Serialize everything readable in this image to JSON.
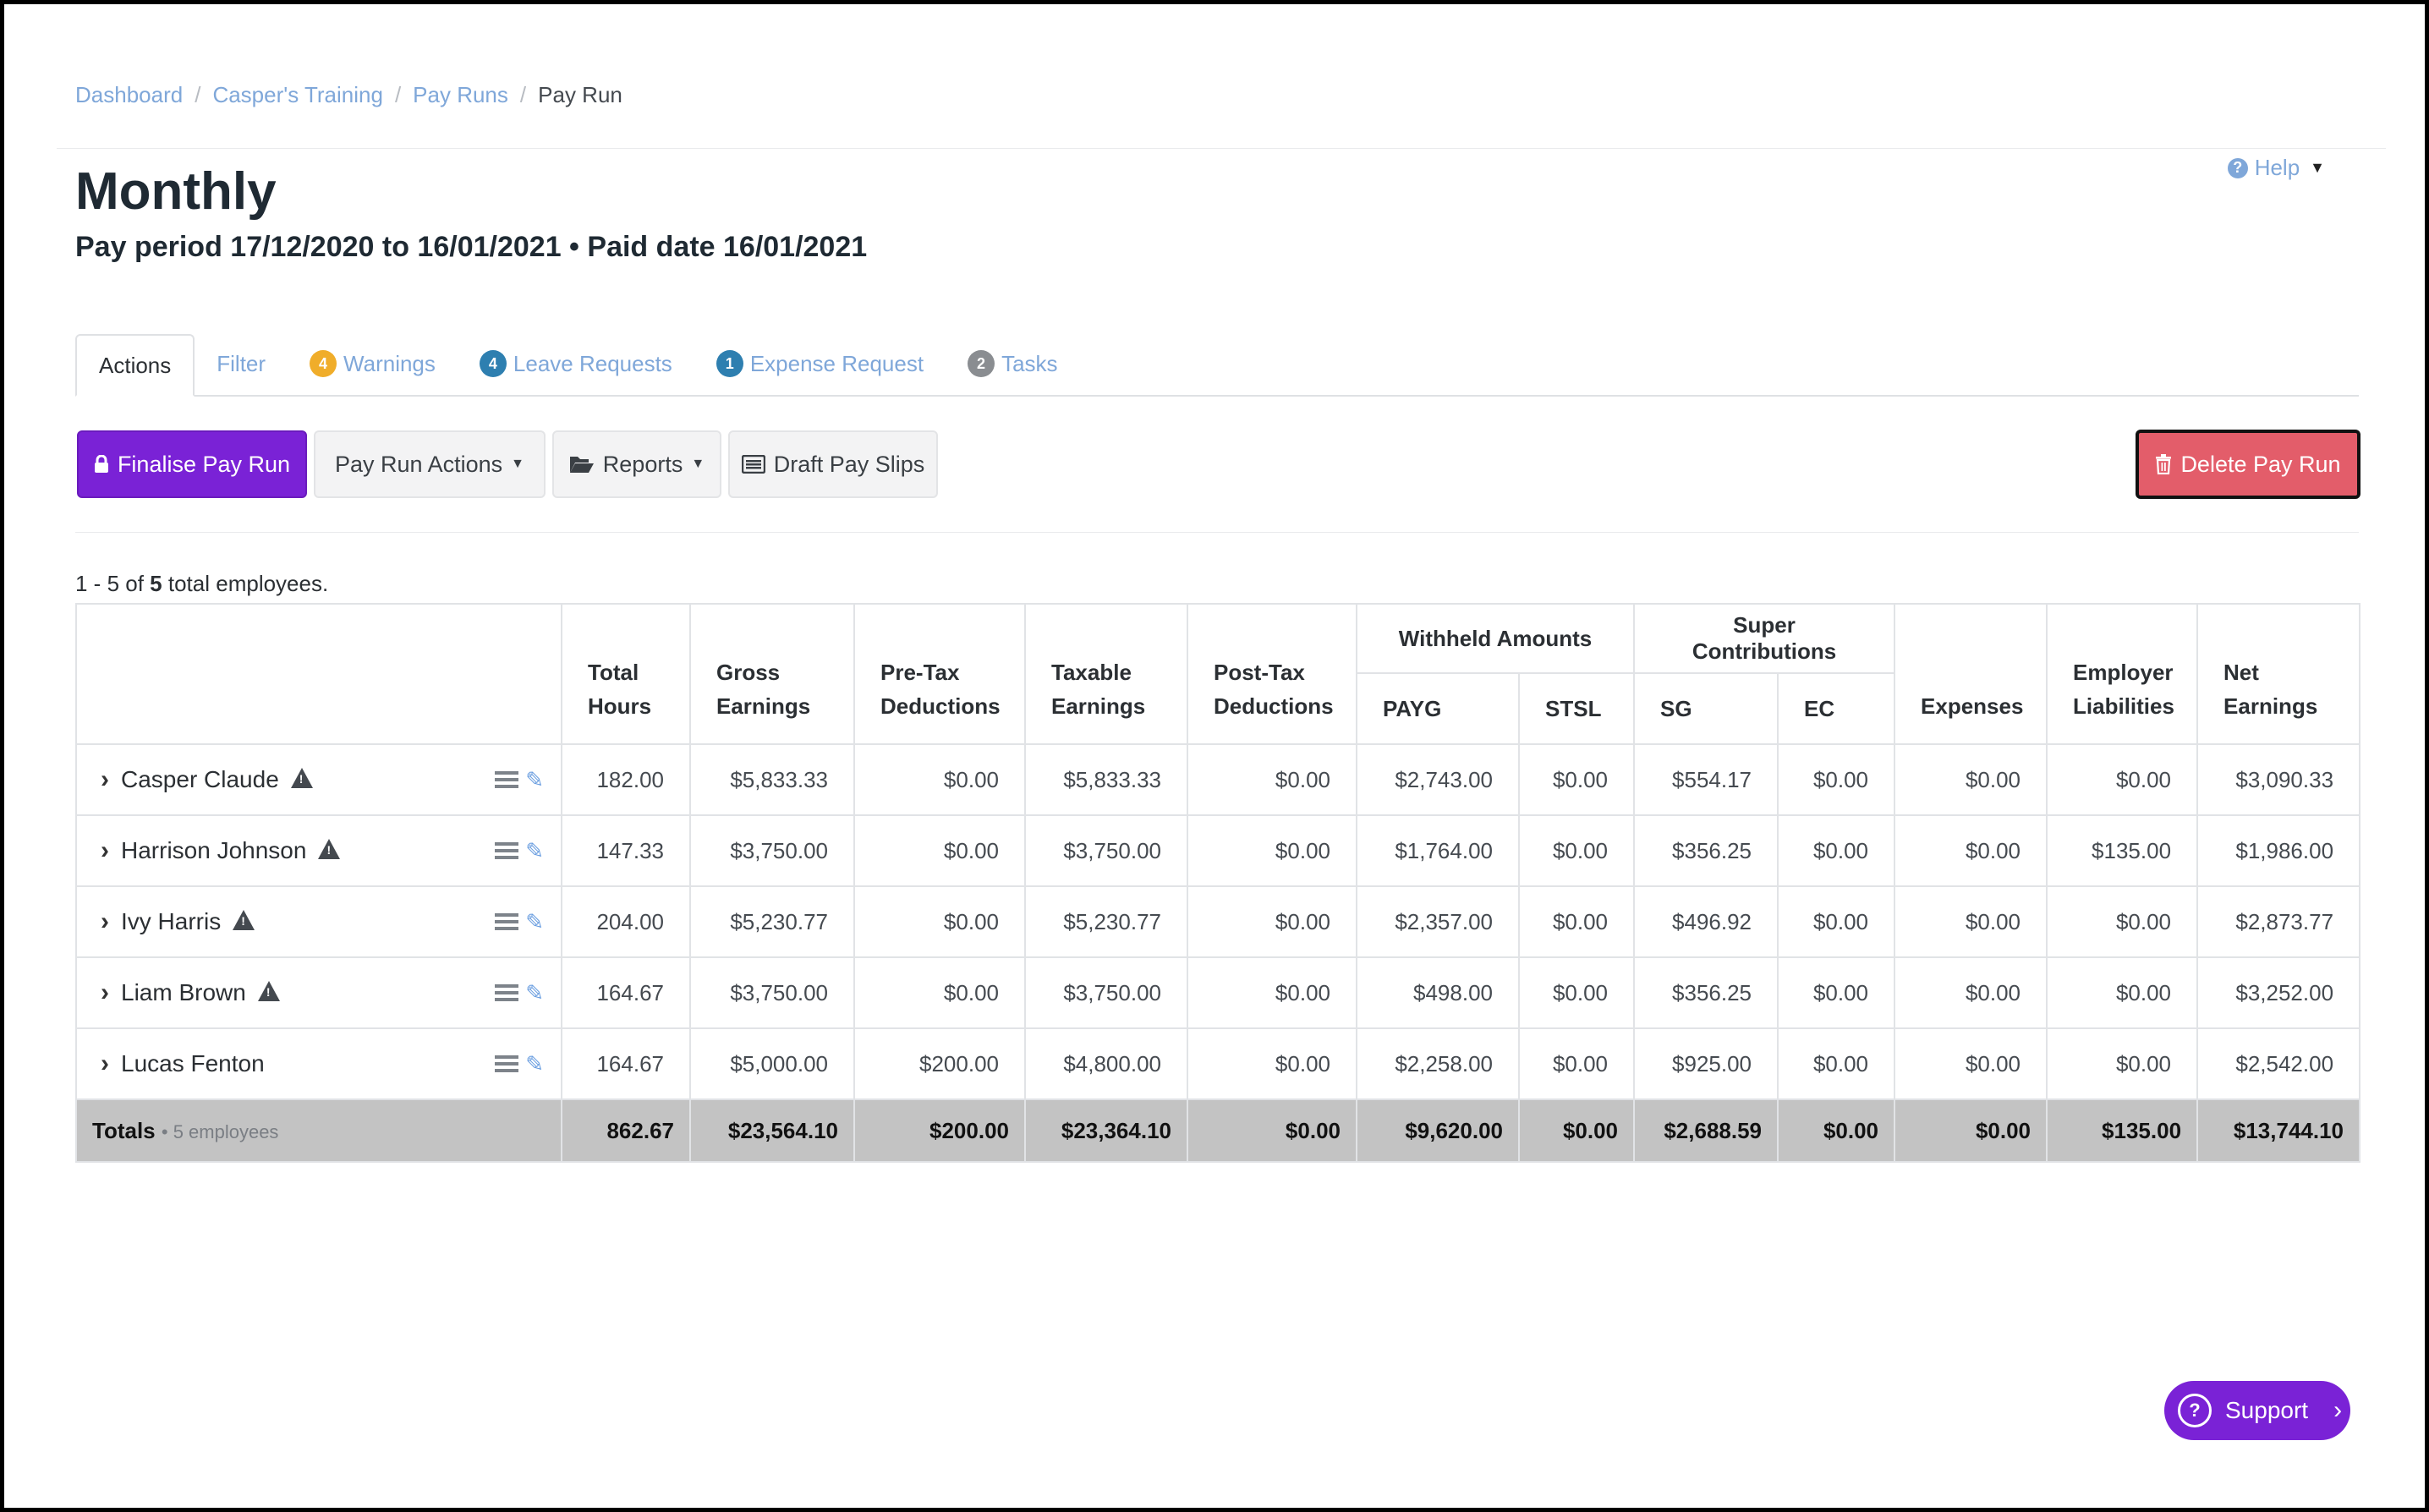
{
  "breadcrumb": {
    "items": [
      "Dashboard",
      "Casper's Training",
      "Pay Runs"
    ],
    "separator": "/",
    "current": "Pay Run"
  },
  "help": {
    "label": "Help"
  },
  "header": {
    "title": "Monthly",
    "subtitle": "Pay period 17/12/2020 to 16/01/2021 • Paid date 16/01/2021"
  },
  "tabs": [
    {
      "label": "Actions",
      "badge": null
    },
    {
      "label": "Filter",
      "badge": null
    },
    {
      "label": "Warnings",
      "badge": "4",
      "badge_color": "#f0ad2a"
    },
    {
      "label": "Leave Requests",
      "badge": "4",
      "badge_color": "#2e7fb0"
    },
    {
      "label": "Expense Request",
      "badge": "1",
      "badge_color": "#2e7fb0"
    },
    {
      "label": "Tasks",
      "badge": "2",
      "badge_color": "#8a8d91"
    }
  ],
  "actions": {
    "finalise": "Finalise Pay Run",
    "pay_run_actions": "Pay Run Actions",
    "reports": "Reports",
    "draft_pay_slips": "Draft Pay Slips",
    "delete": "Delete Pay Run"
  },
  "summary": {
    "prefix": "1 - 5 of",
    "total": "5",
    "suffix": "total employees."
  },
  "table": {
    "group_headers": {
      "withheld": "Withheld Amounts",
      "super": "Super Contributions"
    },
    "headers": {
      "total_hours": [
        "Total",
        "Hours"
      ],
      "gross": [
        "Gross",
        "Earnings"
      ],
      "pretax": [
        "Pre-Tax",
        "Deductions"
      ],
      "taxable": [
        "Taxable",
        "Earnings"
      ],
      "posttax": [
        "Post-Tax",
        "Deductions"
      ],
      "payg": "PAYG",
      "stsl": "STSL",
      "sg": "SG",
      "ec": "EC",
      "expenses": "Expenses",
      "employer": [
        "Employer",
        "Liabilities"
      ],
      "net": [
        "Net",
        "Earnings"
      ]
    },
    "rows": [
      {
        "name": "Casper Claude",
        "warning": true,
        "values": [
          "182.00",
          "$5,833.33",
          "$0.00",
          "$5,833.33",
          "$0.00",
          "$2,743.00",
          "$0.00",
          "$554.17",
          "$0.00",
          "$0.00",
          "$0.00",
          "$3,090.33"
        ]
      },
      {
        "name": "Harrison Johnson",
        "warning": true,
        "values": [
          "147.33",
          "$3,750.00",
          "$0.00",
          "$3,750.00",
          "$0.00",
          "$1,764.00",
          "$0.00",
          "$356.25",
          "$0.00",
          "$0.00",
          "$135.00",
          "$1,986.00"
        ]
      },
      {
        "name": "Ivy Harris",
        "warning": true,
        "values": [
          "204.00",
          "$5,230.77",
          "$0.00",
          "$5,230.77",
          "$0.00",
          "$2,357.00",
          "$0.00",
          "$496.92",
          "$0.00",
          "$0.00",
          "$0.00",
          "$2,873.77"
        ]
      },
      {
        "name": "Liam Brown",
        "warning": true,
        "values": [
          "164.67",
          "$3,750.00",
          "$0.00",
          "$3,750.00",
          "$0.00",
          "$498.00",
          "$0.00",
          "$356.25",
          "$0.00",
          "$0.00",
          "$0.00",
          "$3,252.00"
        ]
      },
      {
        "name": "Lucas Fenton",
        "warning": false,
        "values": [
          "164.67",
          "$5,000.00",
          "$200.00",
          "$4,800.00",
          "$0.00",
          "$2,258.00",
          "$0.00",
          "$925.00",
          "$0.00",
          "$0.00",
          "$0.00",
          "$2,542.00"
        ]
      }
    ],
    "totals": {
      "label": "Totals",
      "employees": "• 5 employees",
      "values": [
        "862.67",
        "$23,564.10",
        "$200.00",
        "$23,364.10",
        "$0.00",
        "$9,620.00",
        "$0.00",
        "$2,688.59",
        "$0.00",
        "$0.00",
        "$135.00",
        "$13,744.10"
      ]
    }
  },
  "support": {
    "label": "Support"
  },
  "colors": {
    "primary": "#7a22d6",
    "link": "#7fa7d9",
    "danger": "#e35d6a",
    "totals_bg": "#c3c3c3"
  }
}
